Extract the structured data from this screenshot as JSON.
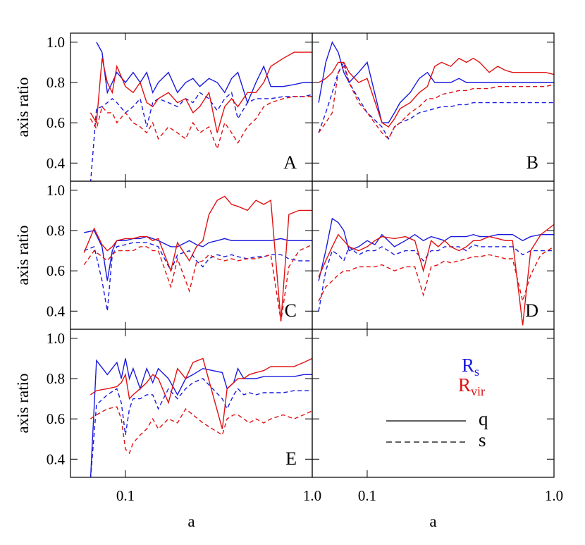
{
  "chart_data": [
    {
      "type": "line",
      "label": "A",
      "xscale": "log",
      "xlim": [
        0.0508,
        1.0
      ],
      "ylim": [
        0.31,
        1.045
      ],
      "xticks": [
        0.1,
        {
          "value": 1,
          "label": "1.0"
        }
      ],
      "yticks": [
        0.4,
        0.6,
        0.8,
        {
          "value": 1,
          "label": "1.0"
        }
      ],
      "xticklabels": false,
      "yticklabels": true,
      "ylabel": "axis ratio",
      "x": [
        0.065,
        0.07,
        0.075,
        0.08,
        0.085,
        0.09,
        0.1,
        0.11,
        0.12,
        0.13,
        0.14,
        0.15,
        0.17,
        0.19,
        0.21,
        0.23,
        0.25,
        0.28,
        0.31,
        0.34,
        0.37,
        0.4,
        0.45,
        0.5,
        0.55,
        0.6,
        0.7,
        0.8,
        0.9,
        1.0
      ],
      "series": [
        {
          "color": "#1a1ae0",
          "dash": false,
          "values": [
            null,
            1.0,
            0.95,
            0.75,
            0.8,
            0.85,
            0.8,
            0.85,
            0.8,
            0.85,
            0.75,
            0.8,
            0.85,
            0.75,
            0.8,
            0.82,
            0.78,
            0.82,
            0.8,
            0.75,
            0.82,
            0.85,
            0.7,
            0.8,
            0.88,
            0.78,
            0.78,
            0.79,
            0.8,
            0.8
          ]
        },
        {
          "color": "#1a1ae0",
          "dash": true,
          "values": [
            0.3,
            0.67,
            0.68,
            0.7,
            0.72,
            0.7,
            0.65,
            0.68,
            0.72,
            0.58,
            0.7,
            0.72,
            0.7,
            0.68,
            0.72,
            0.7,
            0.75,
            0.72,
            0.66,
            0.72,
            0.75,
            0.62,
            0.7,
            0.72,
            0.72,
            0.72,
            0.73,
            0.73,
            0.73,
            0.74
          ]
        },
        {
          "color": "#e01010",
          "dash": false,
          "values": [
            0.65,
            0.6,
            0.92,
            0.8,
            0.75,
            0.88,
            0.78,
            0.75,
            0.8,
            0.7,
            0.68,
            0.72,
            0.75,
            0.7,
            0.72,
            0.65,
            0.68,
            0.75,
            0.55,
            0.68,
            0.72,
            0.68,
            0.75,
            0.75,
            0.8,
            0.88,
            0.92,
            0.95,
            0.95,
            0.95
          ]
        },
        {
          "color": "#e01010",
          "dash": true,
          "values": [
            0.62,
            0.57,
            0.68,
            0.65,
            0.65,
            0.6,
            0.65,
            0.6,
            0.58,
            0.55,
            0.6,
            0.52,
            0.58,
            0.55,
            0.52,
            0.6,
            0.55,
            0.58,
            0.47,
            0.6,
            0.55,
            0.5,
            0.58,
            0.62,
            0.68,
            0.7,
            0.72,
            0.73,
            0.73,
            0.73
          ]
        }
      ]
    },
    {
      "type": "line",
      "label": "B",
      "xscale": "log",
      "xlim": [
        0.0508,
        1.0
      ],
      "ylim": [
        0.31,
        1.045
      ],
      "xticks": [
        0.1,
        {
          "value": 1,
          "label": "1.0"
        }
      ],
      "yticks": [
        0.4,
        0.6,
        0.8,
        {
          "value": 1,
          "label": "1.0"
        }
      ],
      "xticklabels": false,
      "yticklabels": false,
      "x": [
        0.055,
        0.06,
        0.065,
        0.07,
        0.075,
        0.08,
        0.09,
        0.1,
        0.12,
        0.13,
        0.14,
        0.15,
        0.17,
        0.19,
        0.21,
        0.23,
        0.25,
        0.28,
        0.31,
        0.34,
        0.37,
        0.4,
        0.45,
        0.5,
        0.55,
        0.6,
        0.7,
        0.8,
        0.9,
        1.0
      ],
      "series": [
        {
          "color": "#1a1ae0",
          "dash": false,
          "values": [
            0.7,
            0.9,
            1.0,
            0.95,
            0.85,
            0.8,
            0.85,
            0.9,
            0.6,
            0.6,
            0.65,
            0.7,
            0.75,
            0.82,
            0.85,
            0.8,
            0.8,
            0.8,
            0.82,
            0.8,
            0.8,
            0.8,
            0.8,
            0.8,
            0.8,
            0.8,
            0.8,
            0.8,
            0.8,
            0.8
          ]
        },
        {
          "color": "#1a1ae0",
          "dash": true,
          "values": [
            0.55,
            0.65,
            0.75,
            0.85,
            0.9,
            0.8,
            0.72,
            0.65,
            0.58,
            0.52,
            0.58,
            0.6,
            0.62,
            0.65,
            0.66,
            0.67,
            0.68,
            0.68,
            0.69,
            0.69,
            0.7,
            0.7,
            0.7,
            0.7,
            0.7,
            0.7,
            0.7,
            0.7,
            0.7,
            0.7
          ]
        },
        {
          "color": "#e01010",
          "dash": false,
          "values": [
            0.8,
            0.82,
            0.85,
            0.9,
            0.9,
            0.85,
            0.8,
            0.82,
            0.6,
            0.58,
            0.62,
            0.67,
            0.7,
            0.75,
            0.78,
            0.88,
            0.9,
            0.88,
            0.92,
            0.9,
            0.92,
            0.9,
            0.85,
            0.88,
            0.86,
            0.85,
            0.85,
            0.85,
            0.85,
            0.84
          ]
        },
        {
          "color": "#e01010",
          "dash": true,
          "values": [
            0.55,
            0.6,
            0.65,
            0.85,
            0.88,
            0.8,
            0.7,
            0.65,
            0.55,
            0.52,
            0.58,
            0.6,
            0.65,
            0.68,
            0.72,
            0.72,
            0.74,
            0.75,
            0.76,
            0.76,
            0.77,
            0.77,
            0.77,
            0.78,
            0.78,
            0.78,
            0.78,
            0.78,
            0.78,
            0.79
          ]
        }
      ]
    },
    {
      "type": "line",
      "label": "C",
      "xscale": "log",
      "xlim": [
        0.0508,
        1.0
      ],
      "ylim": [
        0.31,
        1.045
      ],
      "xticks": [
        0.1,
        {
          "value": 1,
          "label": "1.0"
        }
      ],
      "yticks": [
        0.4,
        0.6,
        0.8,
        {
          "value": 1,
          "label": "1.0"
        }
      ],
      "xticklabels": false,
      "yticklabels": true,
      "ylabel": "axis ratio",
      "x": [
        0.06,
        0.068,
        0.075,
        0.08,
        0.085,
        0.09,
        0.1,
        0.11,
        0.12,
        0.13,
        0.14,
        0.15,
        0.175,
        0.19,
        0.22,
        0.24,
        0.26,
        0.28,
        0.31,
        0.34,
        0.37,
        0.4,
        0.45,
        0.5,
        0.55,
        0.6,
        0.68,
        0.75,
        0.85,
        1.0
      ],
      "series": [
        {
          "color": "#1a1ae0",
          "dash": false,
          "values": [
            0.79,
            0.8,
            0.72,
            0.55,
            0.7,
            0.75,
            0.75,
            0.76,
            0.76,
            0.77,
            0.76,
            0.75,
            0.72,
            0.72,
            0.75,
            0.73,
            0.72,
            0.74,
            0.75,
            0.76,
            0.75,
            0.75,
            0.75,
            0.75,
            0.75,
            0.75,
            0.76,
            0.75,
            0.75,
            0.75
          ]
        },
        {
          "color": "#1a1ae0",
          "dash": true,
          "values": [
            0.7,
            0.72,
            0.55,
            0.4,
            0.68,
            0.72,
            0.73,
            0.74,
            0.74,
            0.74,
            0.73,
            0.72,
            0.6,
            0.68,
            0.7,
            0.65,
            0.62,
            0.66,
            0.68,
            0.67,
            0.68,
            0.67,
            0.66,
            0.67,
            0.67,
            0.68,
            0.68,
            0.66,
            0.65,
            0.65
          ]
        },
        {
          "color": "#e01010",
          "dash": false,
          "values": [
            0.69,
            0.81,
            0.73,
            0.7,
            0.72,
            0.75,
            0.76,
            0.76,
            0.77,
            0.77,
            0.75,
            0.76,
            0.6,
            0.74,
            0.65,
            0.72,
            0.75,
            0.88,
            0.95,
            0.97,
            0.93,
            0.92,
            0.9,
            0.95,
            0.93,
            0.95,
            0.35,
            0.88,
            0.9,
            0.9
          ]
        },
        {
          "color": "#e01010",
          "dash": true,
          "values": [
            0.63,
            0.7,
            0.67,
            0.65,
            0.68,
            0.7,
            0.7,
            0.7,
            0.72,
            0.72,
            0.7,
            0.7,
            0.52,
            0.66,
            0.5,
            0.64,
            0.65,
            0.68,
            0.66,
            0.65,
            0.66,
            0.65,
            0.66,
            0.66,
            0.67,
            0.68,
            0.35,
            0.62,
            0.7,
            0.73
          ]
        }
      ]
    },
    {
      "type": "line",
      "label": "D",
      "xscale": "log",
      "xlim": [
        0.0508,
        1.0
      ],
      "ylim": [
        0.31,
        1.045
      ],
      "xticks": [
        0.1,
        {
          "value": 1,
          "label": "1.0"
        }
      ],
      "yticks": [
        0.4,
        0.6,
        0.8,
        {
          "value": 1,
          "label": "1.0"
        }
      ],
      "xticklabels": false,
      "yticklabels": false,
      "x": [
        0.055,
        0.06,
        0.065,
        0.07,
        0.075,
        0.08,
        0.09,
        0.1,
        0.11,
        0.12,
        0.14,
        0.16,
        0.18,
        0.2,
        0.22,
        0.24,
        0.26,
        0.28,
        0.31,
        0.34,
        0.37,
        0.4,
        0.45,
        0.5,
        0.55,
        0.6,
        0.68,
        0.75,
        0.85,
        1.0
      ],
      "series": [
        {
          "color": "#1a1ae0",
          "dash": false,
          "values": [
            0.55,
            0.7,
            0.86,
            0.84,
            0.8,
            0.7,
            0.72,
            0.75,
            0.73,
            0.78,
            0.72,
            0.75,
            0.78,
            0.75,
            0.77,
            0.76,
            0.75,
            0.77,
            0.77,
            0.77,
            0.78,
            0.77,
            0.77,
            0.78,
            0.78,
            0.78,
            0.75,
            0.77,
            0.78,
            0.78
          ]
        },
        {
          "color": "#1a1ae0",
          "dash": true,
          "values": [
            0.4,
            0.6,
            0.7,
            0.68,
            0.65,
            0.72,
            0.68,
            0.7,
            0.7,
            0.72,
            0.68,
            0.7,
            0.7,
            0.65,
            0.7,
            0.7,
            0.72,
            0.72,
            0.72,
            0.7,
            0.73,
            0.72,
            0.72,
            0.72,
            0.72,
            0.72,
            0.68,
            0.7,
            0.7,
            0.7
          ]
        },
        {
          "color": "#e01010",
          "dash": false,
          "values": [
            0.57,
            0.65,
            0.72,
            0.78,
            0.75,
            0.72,
            0.7,
            0.72,
            0.75,
            0.77,
            0.76,
            0.77,
            0.75,
            0.6,
            0.75,
            0.72,
            0.75,
            0.72,
            0.7,
            0.72,
            0.75,
            0.75,
            0.77,
            0.76,
            0.75,
            0.75,
            0.33,
            0.7,
            0.78,
            0.83
          ]
        },
        {
          "color": "#e01010",
          "dash": true,
          "values": [
            0.45,
            0.52,
            0.55,
            0.58,
            0.6,
            0.6,
            0.62,
            0.62,
            0.62,
            0.63,
            0.6,
            0.62,
            0.62,
            0.48,
            0.62,
            0.63,
            0.65,
            0.64,
            0.65,
            0.66,
            0.67,
            0.67,
            0.68,
            0.67,
            0.66,
            0.66,
            0.45,
            0.58,
            0.68,
            0.72
          ]
        }
      ]
    },
    {
      "type": "line",
      "label": "E",
      "xscale": "log",
      "xlim": [
        0.0508,
        1.0
      ],
      "ylim": [
        0.31,
        1.045
      ],
      "xticks": [
        0.1,
        {
          "value": 1,
          "label": "1.0"
        }
      ],
      "yticks": [
        0.4,
        0.6,
        0.8,
        {
          "value": 1,
          "label": "1.0"
        }
      ],
      "xticklabels": true,
      "yticklabels": true,
      "ylabel": "axis ratio",
      "xlabel": "a",
      "x": [
        0.065,
        0.07,
        0.08,
        0.09,
        0.095,
        0.1,
        0.105,
        0.11,
        0.12,
        0.13,
        0.14,
        0.15,
        0.17,
        0.19,
        0.21,
        0.23,
        0.26,
        0.33,
        0.35,
        0.38,
        0.4,
        0.43,
        0.46,
        0.5,
        0.55,
        0.6,
        0.7,
        0.8,
        0.9,
        1.0
      ],
      "series": [
        {
          "color": "#1a1ae0",
          "dash": false,
          "values": [
            0.3,
            0.89,
            0.82,
            0.88,
            0.8,
            0.9,
            0.8,
            0.85,
            0.75,
            0.85,
            0.78,
            0.85,
            0.8,
            0.72,
            0.8,
            0.82,
            0.85,
            0.83,
            0.75,
            0.78,
            0.85,
            0.8,
            0.8,
            0.8,
            0.81,
            0.81,
            0.81,
            0.81,
            0.82,
            0.82
          ]
        },
        {
          "color": "#1a1ae0",
          "dash": true,
          "values": [
            0.3,
            0.67,
            0.72,
            0.75,
            0.68,
            0.52,
            0.65,
            0.7,
            0.7,
            0.72,
            0.72,
            0.65,
            0.75,
            0.7,
            0.75,
            0.78,
            0.8,
            0.7,
            0.65,
            0.72,
            0.75,
            0.72,
            0.73,
            0.72,
            0.73,
            0.73,
            0.73,
            0.74,
            0.74,
            0.74
          ]
        },
        {
          "color": "#e01010",
          "dash": false,
          "values": [
            0.72,
            0.74,
            0.75,
            0.76,
            0.78,
            0.82,
            0.7,
            0.72,
            0.75,
            0.78,
            0.82,
            0.8,
            0.68,
            0.85,
            0.8,
            0.88,
            0.9,
            0.55,
            0.75,
            0.78,
            0.8,
            0.8,
            0.82,
            0.83,
            0.84,
            0.86,
            0.86,
            0.86,
            0.88,
            0.9
          ]
        },
        {
          "color": "#e01010",
          "dash": true,
          "values": [
            0.6,
            0.62,
            0.65,
            0.66,
            0.6,
            0.45,
            0.43,
            0.48,
            0.52,
            0.55,
            0.6,
            0.55,
            0.6,
            0.58,
            0.65,
            0.62,
            0.58,
            0.52,
            0.6,
            0.62,
            0.62,
            0.6,
            0.58,
            0.6,
            0.58,
            0.6,
            0.62,
            0.6,
            0.62,
            0.64
          ]
        }
      ]
    },
    {
      "type": "legend",
      "xscale": "log",
      "xlim": [
        0.0508,
        1.0
      ],
      "ylim": [
        0.31,
        1.045
      ],
      "xticks": [
        0.1,
        {
          "value": 1,
          "label": "1.0"
        }
      ],
      "yticks": [
        0.4,
        0.6,
        0.8,
        {
          "value": 1,
          "label": "1.0"
        }
      ],
      "xticklabels": true,
      "yticklabels": false,
      "xlabel": "a",
      "colors": [
        {
          "name": "R",
          "sub": "s",
          "color": "#1a1ae0"
        },
        {
          "name": "R",
          "sub": "vir",
          "color": "#e01010"
        }
      ],
      "styles": [
        {
          "name": "q",
          "dash": false
        },
        {
          "name": "s",
          "dash": true
        }
      ]
    }
  ]
}
